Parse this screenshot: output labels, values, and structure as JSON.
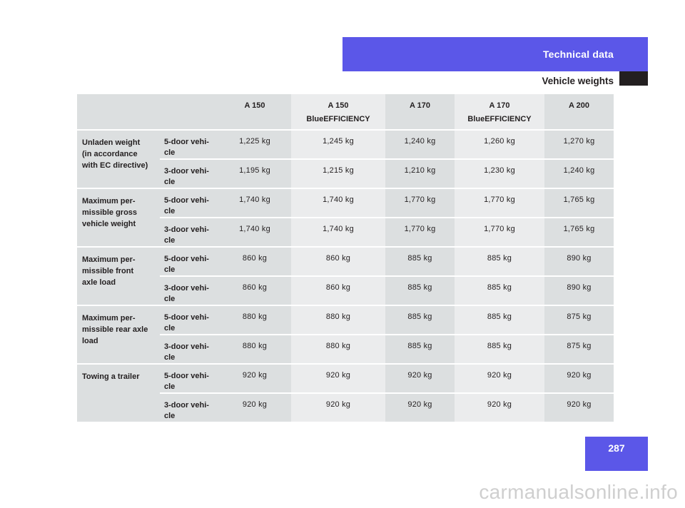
{
  "header": {
    "section": "Technical data",
    "subsection": "Vehicle weights"
  },
  "page_number": "287",
  "watermark": "carmanualsonline.info",
  "table": {
    "columns": [
      "A 150",
      "A 150\nBlueEFFICIENCY",
      "A 170",
      "A 170\nBlueEFFICIENCY",
      "A 200"
    ],
    "column_lines": [
      [
        "A 150",
        ""
      ],
      [
        "A 150",
        "BlueEFFICIENCY"
      ],
      [
        "A 170",
        ""
      ],
      [
        "A 170",
        "BlueEFFICIENCY"
      ],
      [
        "A 200",
        ""
      ]
    ],
    "groups": [
      {
        "label": "Unladen weight (in accordance with EC directive)",
        "lines": [
          "Unladen weight",
          "(in accordance",
          "with EC directive)"
        ],
        "rows": [
          {
            "variant": [
              "5-door vehi-",
              "cle"
            ],
            "values": [
              "1,225 kg",
              "1,245 kg",
              "1,240 kg",
              "1,260 kg",
              "1,270 kg"
            ]
          },
          {
            "variant": [
              "3-door vehi-",
              "cle"
            ],
            "values": [
              "1,195 kg",
              "1,215 kg",
              "1,210 kg",
              "1,230 kg",
              "1,240 kg"
            ]
          }
        ]
      },
      {
        "label": "Maximum permissible gross vehicle weight",
        "lines": [
          "Maximum per-",
          "missible gross",
          "vehicle weight"
        ],
        "rows": [
          {
            "variant": [
              "5-door vehi-",
              "cle"
            ],
            "values": [
              "1,740 kg",
              "1,740 kg",
              "1,770 kg",
              "1,770 kg",
              "1,765 kg"
            ]
          },
          {
            "variant": [
              "3-door vehi-",
              "cle"
            ],
            "values": [
              "1,740 kg",
              "1,740 kg",
              "1,770 kg",
              "1,770 kg",
              "1,765 kg"
            ]
          }
        ]
      },
      {
        "label": "Maximum permissible front axle load",
        "lines": [
          "Maximum per-",
          "missible front",
          "axle load"
        ],
        "rows": [
          {
            "variant": [
              "5-door vehi-",
              "cle"
            ],
            "values": [
              "860 kg",
              "860 kg",
              "885 kg",
              "885 kg",
              "890 kg"
            ]
          },
          {
            "variant": [
              "3-door vehi-",
              "cle"
            ],
            "values": [
              "860 kg",
              "860 kg",
              "885 kg",
              "885 kg",
              "890 kg"
            ]
          }
        ]
      },
      {
        "label": "Maximum permissible rear axle load",
        "lines": [
          "Maximum per-",
          "missible rear axle",
          "load"
        ],
        "rows": [
          {
            "variant": [
              "5-door vehi-",
              "cle"
            ],
            "values": [
              "880 kg",
              "880 kg",
              "885 kg",
              "885 kg",
              "875 kg"
            ]
          },
          {
            "variant": [
              "3-door vehi-",
              "cle"
            ],
            "values": [
              "880 kg",
              "880 kg",
              "885 kg",
              "885 kg",
              "875 kg"
            ]
          }
        ]
      },
      {
        "label": "Towing a trailer",
        "lines": [
          "Towing a trailer"
        ],
        "rows": [
          {
            "variant": [
              "5-door vehi-",
              "cle"
            ],
            "values": [
              "920 kg",
              "920 kg",
              "920 kg",
              "920 kg",
              "920 kg"
            ]
          },
          {
            "variant": [
              "3-door vehi-",
              "cle"
            ],
            "values": [
              "920 kg",
              "920 kg",
              "920 kg",
              "920 kg",
              "920 kg"
            ]
          }
        ]
      }
    ]
  },
  "colors": {
    "accent": "#5b57e8",
    "cell_dark": "#dcdfe0",
    "cell_light": "#ebeced"
  }
}
